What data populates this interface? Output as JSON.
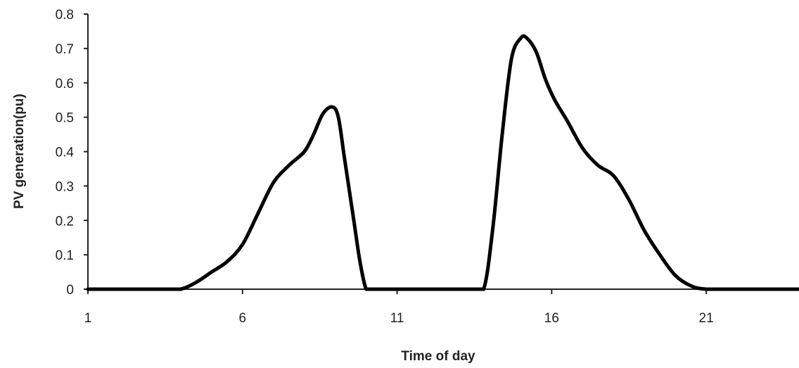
{
  "chart_data": {
    "type": "line",
    "title": "",
    "xlabel": "Time of day",
    "ylabel": "PV generation(pu)",
    "xlim": [
      1,
      24
    ],
    "ylim": [
      0,
      0.8
    ],
    "grid": false,
    "legend": "none",
    "line_color": "#000000",
    "x_ticks": [
      1,
      6,
      11,
      16,
      21
    ],
    "y_ticks": [
      "0",
      "0.1",
      "0.2",
      "0.3",
      "0.4",
      "0.5",
      "0.6",
      "0.7",
      "0.8"
    ],
    "series": [
      {
        "x": [
          1,
          2,
          3,
          3.5,
          4,
          4.5,
          5,
          5.5,
          6,
          6.5,
          7,
          7.5,
          8,
          8.3,
          8.6,
          8.9,
          9.1,
          9.3,
          9.6,
          9.8,
          10.0,
          10.2,
          11,
          12,
          13,
          13.4,
          13.8,
          14.1,
          14.4,
          14.7,
          15.0,
          15.2,
          15.5,
          15.8,
          16.1,
          16.5,
          17,
          17.5,
          18,
          18.5,
          19,
          19.5,
          20,
          20.5,
          21,
          22,
          23,
          24
        ],
        "y": [
          0,
          0,
          0,
          0,
          0,
          0.02,
          0.05,
          0.08,
          0.13,
          0.22,
          0.31,
          0.36,
          0.4,
          0.45,
          0.51,
          0.53,
          0.5,
          0.38,
          0.2,
          0.08,
          0,
          0,
          0,
          0,
          0,
          0,
          0,
          0.18,
          0.45,
          0.67,
          0.73,
          0.73,
          0.69,
          0.61,
          0.55,
          0.49,
          0.41,
          0.36,
          0.33,
          0.26,
          0.17,
          0.1,
          0.04,
          0.01,
          0,
          0,
          0,
          0
        ]
      }
    ]
  }
}
